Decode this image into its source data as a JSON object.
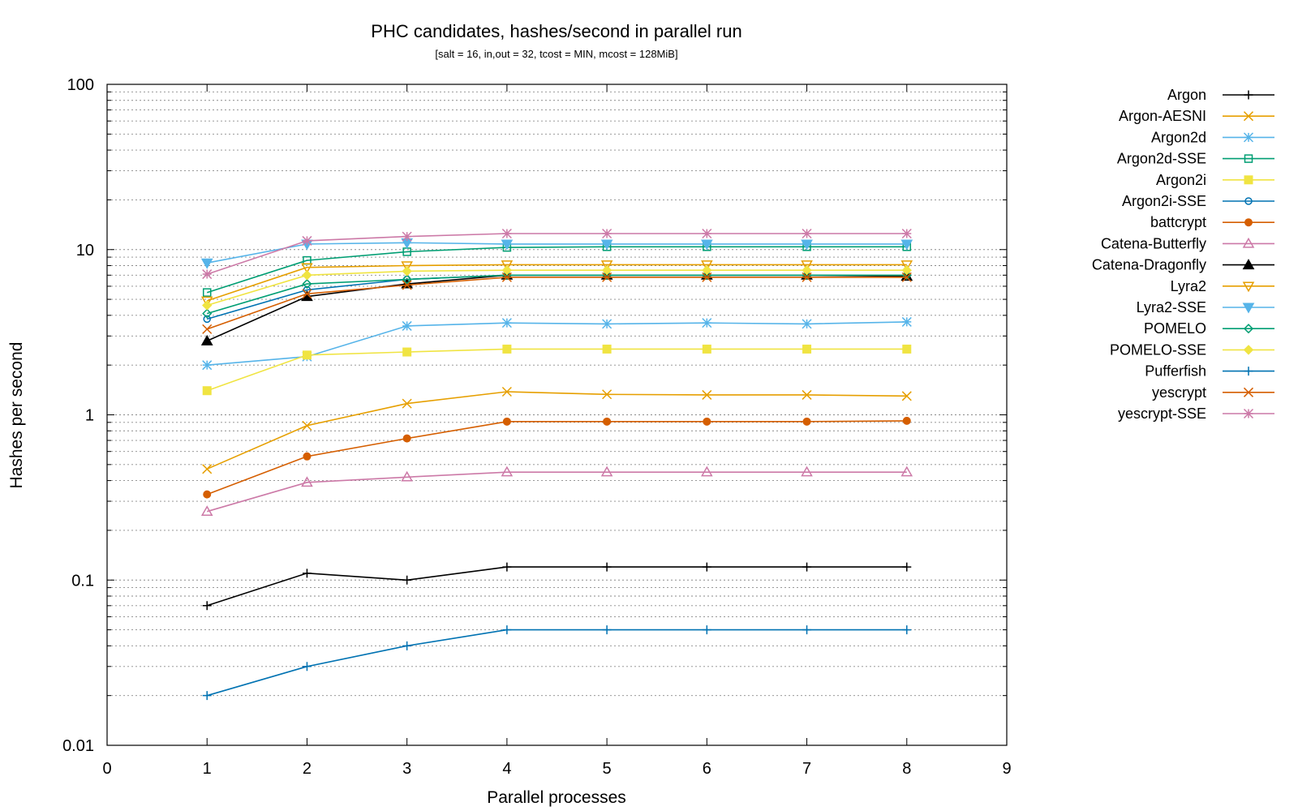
{
  "chart_data": {
    "type": "line",
    "title": "PHC candidates, hashes/second in parallel run",
    "subtitle": "[salt = 16, in,out = 32, tcost = MIN, mcost = 128MiB]",
    "xlabel": "Parallel processes",
    "ylabel": "Hashes per second",
    "xlim": [
      0,
      9
    ],
    "ylim": [
      0.01,
      100
    ],
    "yscale": "log",
    "x_ticks": [
      "0",
      "1",
      "2",
      "3",
      "4",
      "5",
      "6",
      "7",
      "8",
      "9"
    ],
    "y_ticks": [
      "0.01",
      "0.1",
      "1",
      "10",
      "100"
    ],
    "grid": "horizontal dotted (log minor)",
    "legend_position": "right",
    "x": [
      1,
      2,
      3,
      4,
      5,
      6,
      7,
      8
    ],
    "series": [
      {
        "name": "Argon",
        "color": "#000000",
        "marker": "plus",
        "values": [
          0.07,
          0.11,
          0.1,
          0.12,
          0.12,
          0.12,
          0.12,
          0.12
        ]
      },
      {
        "name": "Argon-AESNI",
        "color": "#e69f00",
        "marker": "cross",
        "values": [
          0.47,
          0.86,
          1.17,
          1.38,
          1.33,
          1.32,
          1.32,
          1.3
        ]
      },
      {
        "name": "Argon2d",
        "color": "#56b4e9",
        "marker": "star",
        "values": [
          2.0,
          2.25,
          3.45,
          3.6,
          3.55,
          3.6,
          3.55,
          3.65
        ]
      },
      {
        "name": "Argon2d-SSE",
        "color": "#009e73",
        "marker": "square-open",
        "values": [
          5.5,
          8.6,
          9.7,
          10.3,
          10.4,
          10.4,
          10.4,
          10.4
        ]
      },
      {
        "name": "Argon2i",
        "color": "#f0e442",
        "marker": "square-filled",
        "values": [
          1.4,
          2.3,
          2.4,
          2.5,
          2.5,
          2.5,
          2.5,
          2.5
        ]
      },
      {
        "name": "Argon2i-SSE",
        "color": "#0072b2",
        "marker": "circle-open",
        "values": [
          3.8,
          5.7,
          6.6,
          7.0,
          7.0,
          7.0,
          7.0,
          7.0
        ]
      },
      {
        "name": "battcrypt",
        "color": "#d55e00",
        "marker": "circle-filled",
        "values": [
          0.33,
          0.56,
          0.72,
          0.91,
          0.91,
          0.91,
          0.91,
          0.92
        ]
      },
      {
        "name": "Catena-Butterfly",
        "color": "#cc79a7",
        "marker": "triangle-open",
        "values": [
          0.26,
          0.39,
          0.42,
          0.45,
          0.45,
          0.45,
          0.45,
          0.45
        ]
      },
      {
        "name": "Catena-Dragonfly",
        "color": "#000000",
        "marker": "triangle-filled",
        "values": [
          2.8,
          5.2,
          6.2,
          7.0,
          7.0,
          7.0,
          7.0,
          6.9
        ]
      },
      {
        "name": "Lyra2",
        "color": "#e69f00",
        "marker": "triangle-down-open",
        "values": [
          4.9,
          7.8,
          8.0,
          8.1,
          8.1,
          8.1,
          8.1,
          8.1
        ]
      },
      {
        "name": "Lyra2-SSE",
        "color": "#56b4e9",
        "marker": "triangle-down-filled",
        "values": [
          8.3,
          10.8,
          11.0,
          10.8,
          10.8,
          10.8,
          10.8,
          10.8
        ]
      },
      {
        "name": "POMELO",
        "color": "#009e73",
        "marker": "diamond-open",
        "values": [
          4.1,
          6.2,
          6.6,
          7.0,
          7.0,
          7.0,
          7.0,
          7.0
        ]
      },
      {
        "name": "POMELO-SSE",
        "color": "#f0e442",
        "marker": "diamond-filled",
        "values": [
          4.6,
          7.0,
          7.4,
          7.5,
          7.5,
          7.5,
          7.5,
          7.5
        ]
      },
      {
        "name": "Pufferfish",
        "color": "#0072b2",
        "marker": "plus",
        "values": [
          0.02,
          0.03,
          0.04,
          0.05,
          0.05,
          0.05,
          0.05,
          0.05
        ]
      },
      {
        "name": "yescrypt",
        "color": "#d55e00",
        "marker": "cross",
        "values": [
          3.3,
          5.4,
          6.1,
          6.8,
          6.8,
          6.8,
          6.8,
          6.8
        ]
      },
      {
        "name": "yescrypt-SSE",
        "color": "#cc79a7",
        "marker": "star",
        "values": [
          7.1,
          11.3,
          12.0,
          12.5,
          12.5,
          12.5,
          12.5,
          12.5
        ]
      }
    ]
  }
}
